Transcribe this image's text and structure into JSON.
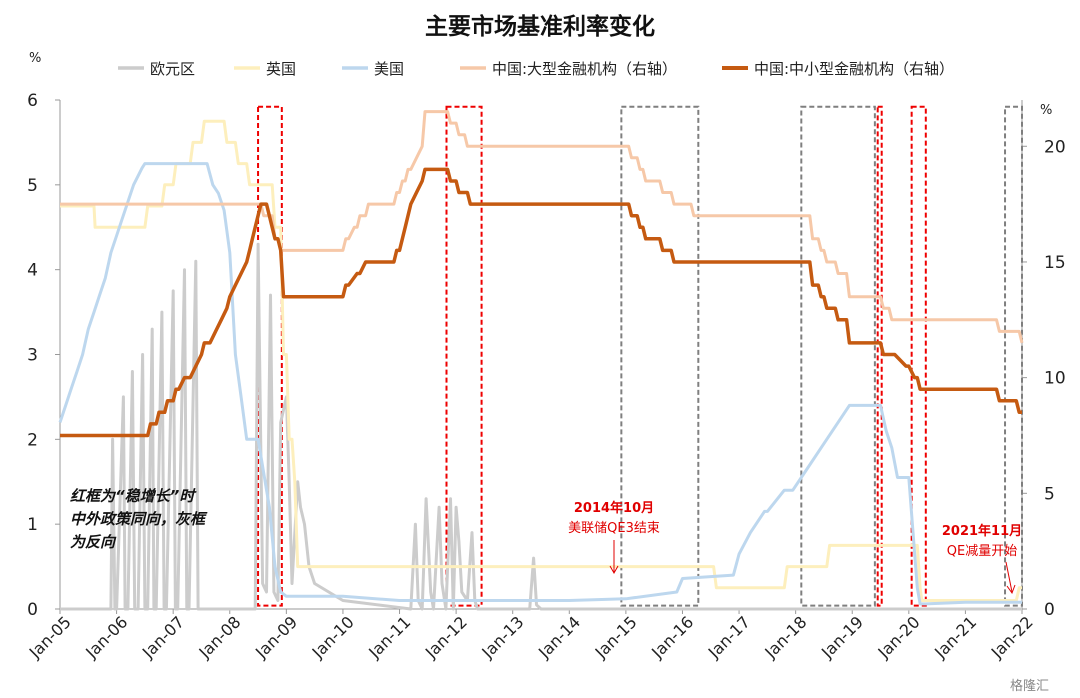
{
  "chart_data": {
    "type": "line",
    "title": "主要市场基准利率变化",
    "left_unit": "%",
    "right_unit": "%",
    "ylim_left": [
      0,
      6
    ],
    "ylim_right": [
      0,
      22
    ],
    "yticks_left": [
      "0",
      "1",
      "2",
      "3",
      "4",
      "5",
      "6"
    ],
    "yticks_right": [
      "0",
      "5",
      "10",
      "15",
      "20"
    ],
    "x_range": [
      2005.0,
      2022.0
    ],
    "x_ticks": [
      "Jan-05",
      "Jan-06",
      "Jan-07",
      "Jan-08",
      "Jan-09",
      "Jan-10",
      "Jan-11",
      "Jan-12",
      "Jan-13",
      "Jan-14",
      "Jan-15",
      "Jan-16",
      "Jan-17",
      "Jan-18",
      "Jan-19",
      "Jan-20",
      "Jan-21",
      "Jan-22"
    ],
    "series": [
      {
        "name": "欧元区",
        "axis": "left",
        "color": "#cccccc",
        "width": 3,
        "x": [
          2005.0,
          2005.9,
          2005.93,
          2005.97,
          2006.0,
          2006.12,
          2006.15,
          2006.2,
          2006.28,
          2006.32,
          2006.38,
          2006.46,
          2006.5,
          2006.55,
          2006.63,
          2006.66,
          2006.7,
          2006.8,
          2006.84,
          2006.88,
          2007.0,
          2007.04,
          2007.08,
          2007.2,
          2007.24,
          2007.28,
          2007.4,
          2007.44,
          2007.48,
          2007.52,
          2008.45,
          2008.5,
          2008.58,
          2008.65,
          2008.72,
          2008.78,
          2008.85,
          2008.9,
          2009.0,
          2009.05,
          2009.1,
          2009.2,
          2009.25,
          2009.32,
          2009.4,
          2009.5,
          2010.0,
          2011.2,
          2011.28,
          2011.33,
          2011.4,
          2011.47,
          2011.55,
          2011.6,
          2011.7,
          2011.75,
          2011.82,
          2011.9,
          2011.95,
          2012.0,
          2012.05,
          2012.1,
          2012.2,
          2012.28,
          2012.33,
          2012.38,
          2012.5,
          2013.3,
          2013.37,
          2013.42,
          2013.5,
          2016.0,
          2022.0
        ],
        "y": [
          0,
          0,
          2.0,
          0,
          0,
          2.5,
          0,
          0,
          2.8,
          0,
          0,
          3.0,
          0,
          0,
          3.3,
          0,
          0,
          3.5,
          0,
          0,
          3.75,
          0,
          0,
          4.0,
          0,
          0,
          4.1,
          0,
          0,
          0,
          0,
          4.3,
          0.3,
          0.2,
          3.7,
          0.2,
          0.1,
          2.2,
          2.5,
          1.5,
          0.3,
          1.5,
          1.2,
          1.0,
          0.5,
          0.3,
          0.1,
          0,
          1.0,
          0.1,
          0,
          1.3,
          0.2,
          0,
          1.2,
          0.3,
          0,
          1.3,
          0,
          1.2,
          0.8,
          0.2,
          0.1,
          0.9,
          0.1,
          0,
          0,
          0,
          0.6,
          0.05,
          0,
          0,
          0
        ]
      },
      {
        "name": "英国",
        "axis": "left",
        "color": "#fdefbd",
        "width": 3,
        "x": [
          2005.0,
          2005.6,
          2005.62,
          2006.5,
          2006.55,
          2006.8,
          2006.85,
          2007.0,
          2007.05,
          2007.3,
          2007.35,
          2007.5,
          2007.55,
          2007.9,
          2007.95,
          2008.1,
          2008.15,
          2008.3,
          2008.35,
          2008.75,
          2008.8,
          2008.9,
          2008.95,
          2009.0,
          2009.05,
          2009.1,
          2009.15,
          2009.2,
          2016.55,
          2016.6,
          2017.8,
          2017.85,
          2018.55,
          2018.6,
          2020.15,
          2020.2,
          2020.23,
          2020.26,
          2021.9,
          2021.95,
          2022.0
        ],
        "y": [
          4.75,
          4.75,
          4.5,
          4.5,
          4.75,
          4.75,
          5.0,
          5.0,
          5.25,
          5.25,
          5.5,
          5.5,
          5.75,
          5.75,
          5.5,
          5.5,
          5.25,
          5.25,
          5.0,
          5.0,
          4.5,
          4.5,
          3.0,
          3.0,
          2.0,
          2.0,
          1.5,
          0.5,
          0.5,
          0.25,
          0.25,
          0.5,
          0.5,
          0.75,
          0.75,
          0.25,
          0.1,
          0.1,
          0.1,
          0.25,
          0.25
        ]
      },
      {
        "name": "美国",
        "axis": "left",
        "color": "#bdd7ee",
        "width": 3,
        "x": [
          2005.0,
          2005.1,
          2005.2,
          2005.3,
          2005.4,
          2005.5,
          2005.6,
          2005.7,
          2005.8,
          2005.9,
          2006.0,
          2006.1,
          2006.2,
          2006.3,
          2006.45,
          2006.5,
          2006.8,
          2007.6,
          2007.7,
          2007.8,
          2007.9,
          2008.0,
          2008.1,
          2008.2,
          2008.3,
          2008.5,
          2008.7,
          2008.8,
          2008.9,
          2009.0,
          2010.0,
          2011.0,
          2012.0,
          2013.0,
          2014.0,
          2015.0,
          2015.9,
          2016.0,
          2016.9,
          2017.0,
          2017.2,
          2017.45,
          2017.5,
          2017.8,
          2017.95,
          2018.2,
          2018.45,
          2018.7,
          2018.95,
          2019.5,
          2019.6,
          2019.7,
          2019.8,
          2020.0,
          2020.15,
          2020.2,
          2020.3,
          2021.0,
          2022.0
        ],
        "y": [
          2.2,
          2.4,
          2.6,
          2.8,
          3.0,
          3.3,
          3.5,
          3.7,
          3.9,
          4.2,
          4.4,
          4.6,
          4.8,
          5.0,
          5.2,
          5.25,
          5.25,
          5.25,
          5.0,
          4.9,
          4.7,
          4.2,
          3.0,
          2.5,
          2.0,
          2.0,
          1.2,
          0.5,
          0.2,
          0.15,
          0.15,
          0.1,
          0.1,
          0.1,
          0.1,
          0.12,
          0.2,
          0.36,
          0.4,
          0.65,
          0.9,
          1.15,
          1.15,
          1.4,
          1.4,
          1.65,
          1.9,
          2.15,
          2.4,
          2.4,
          2.1,
          1.9,
          1.55,
          1.55,
          0.25,
          0.06,
          0.06,
          0.08,
          0.08
        ]
      },
      {
        "name": "中国:大型金融机构（右轴）",
        "axis": "right",
        "color": "#f6c8a8",
        "width": 3,
        "x": [
          2005.0,
          2008.55,
          2008.6,
          2008.75,
          2008.8,
          2008.85,
          2008.9,
          2008.95,
          2009.0,
          2010.0,
          2010.05,
          2010.1,
          2010.2,
          2010.25,
          2010.3,
          2010.4,
          2010.45,
          2010.5,
          2010.9,
          2010.95,
          2011.0,
          2011.05,
          2011.1,
          2011.15,
          2011.2,
          2011.4,
          2011.45,
          2011.85,
          2011.9,
          2012.0,
          2012.05,
          2012.1,
          2012.15,
          2012.2,
          2012.25,
          2012.3,
          2012.35,
          2012.4,
          2012.45,
          2015.05,
          2015.1,
          2015.2,
          2015.25,
          2015.3,
          2015.35,
          2015.6,
          2015.65,
          2015.8,
          2015.85,
          2016.15,
          2016.2,
          2018.25,
          2018.3,
          2018.4,
          2018.45,
          2018.5,
          2018.55,
          2018.7,
          2018.75,
          2018.9,
          2018.95,
          2019.5,
          2019.55,
          2019.65,
          2019.7,
          2019.95,
          2020.0,
          2020.1,
          2020.15,
          2021.55,
          2021.6,
          2021.95,
          2022.0
        ],
        "y": [
          17.5,
          17.5,
          17.0,
          17.0,
          16.0,
          16.0,
          15.5,
          15.5,
          15.5,
          15.5,
          16.0,
          16.0,
          16.5,
          16.5,
          17.0,
          17.0,
          17.5,
          17.5,
          17.5,
          18.0,
          18.0,
          18.5,
          18.5,
          19.0,
          19.0,
          20.0,
          21.5,
          21.5,
          21.0,
          21.0,
          20.5,
          20.5,
          20.5,
          20.0,
          20.0,
          20.0,
          20.0,
          20.0,
          20.0,
          20.0,
          19.5,
          19.5,
          19.0,
          19.0,
          18.5,
          18.5,
          18.0,
          18.0,
          17.5,
          17.5,
          17.0,
          17.0,
          16.0,
          16.0,
          15.5,
          15.5,
          15.0,
          15.0,
          14.5,
          14.5,
          13.5,
          13.5,
          13.0,
          13.0,
          12.5,
          12.5,
          12.5,
          12.5,
          12.5,
          12.5,
          12.0,
          12.0,
          11.5
        ]
      },
      {
        "name": "中国:中小型金融机构（右轴）",
        "axis": "right",
        "color": "#c55a11",
        "width": 3.5,
        "x": [
          2005.0,
          2006.55,
          2006.6,
          2006.7,
          2006.75,
          2006.85,
          2006.9,
          2007.0,
          2007.05,
          2007.1,
          2007.2,
          2007.3,
          2007.4,
          2007.5,
          2007.55,
          2007.65,
          2007.75,
          2007.85,
          2007.95,
          2008.0,
          2008.1,
          2008.2,
          2008.3,
          2008.35,
          2008.4,
          2008.45,
          2008.55,
          2008.65,
          2008.75,
          2008.8,
          2008.85,
          2008.9,
          2008.95,
          2009.0,
          2010.0,
          2010.05,
          2010.1,
          2010.25,
          2010.3,
          2010.4,
          2010.45,
          2010.9,
          2010.95,
          2011.0,
          2011.1,
          2011.2,
          2011.3,
          2011.4,
          2011.45,
          2011.85,
          2011.9,
          2012.0,
          2012.05,
          2012.2,
          2012.25,
          2012.45,
          2012.5,
          2015.05,
          2015.1,
          2015.2,
          2015.25,
          2015.3,
          2015.35,
          2015.6,
          2015.65,
          2015.8,
          2015.85,
          2016.15,
          2016.2,
          2018.25,
          2018.3,
          2018.4,
          2018.45,
          2018.5,
          2018.55,
          2018.7,
          2018.75,
          2018.9,
          2018.95,
          2019.5,
          2019.55,
          2019.7,
          2019.75,
          2019.95,
          2020.0,
          2020.1,
          2020.15,
          2020.2,
          2020.3,
          2021.55,
          2021.6,
          2021.9,
          2021.95,
          2022.0
        ],
        "y": [
          7.5,
          7.5,
          8.0,
          8.0,
          8.5,
          8.5,
          9.0,
          9.0,
          9.5,
          9.5,
          10.0,
          10.0,
          10.5,
          11.0,
          11.5,
          11.5,
          12.0,
          12.5,
          13.0,
          13.5,
          14.0,
          14.5,
          15.0,
          15.5,
          16.0,
          16.5,
          17.5,
          17.5,
          16.5,
          16.0,
          16.0,
          15.5,
          13.5,
          13.5,
          13.5,
          14.0,
          14.0,
          14.5,
          14.5,
          15.0,
          15.0,
          15.0,
          15.5,
          15.5,
          16.5,
          17.5,
          18.0,
          18.5,
          19.0,
          19.0,
          18.5,
          18.5,
          18.0,
          18.0,
          17.5,
          17.5,
          17.5,
          17.5,
          17.0,
          17.0,
          16.5,
          16.5,
          16.0,
          16.0,
          15.5,
          15.5,
          15.0,
          15.0,
          15.0,
          15.0,
          14.0,
          14.0,
          13.5,
          13.5,
          13.0,
          13.0,
          12.5,
          12.5,
          11.5,
          11.5,
          11.0,
          11.0,
          11.0,
          10.5,
          10.5,
          10.0,
          10.0,
          9.5,
          9.5,
          9.5,
          9.0,
          9.0,
          8.5,
          8.5
        ]
      }
    ],
    "boxes": [
      {
        "style": "red",
        "x0": 2008.5,
        "x1": 2008.92,
        "y0": 0.04,
        "y1": 5.92
      },
      {
        "style": "red",
        "x0": 2011.83,
        "x1": 2012.45,
        "y0": 0.04,
        "y1": 5.92
      },
      {
        "style": "gray",
        "x0": 2014.92,
        "x1": 2016.28,
        "y0": 0.04,
        "y1": 5.92
      },
      {
        "style": "gray",
        "x0": 2018.1,
        "x1": 2019.4,
        "y0": 0.04,
        "y1": 5.92
      },
      {
        "style": "red",
        "x0": 2019.45,
        "x1": 220.0,
        "y0": 0.04,
        "y1": 5.92
      },
      {
        "style": "red",
        "x0": 2020.05,
        "x1": 2020.3,
        "y0": 0.04,
        "y1": 5.92
      },
      {
        "style": "gray",
        "x0": 2021.7,
        "x1": 2022.0,
        "y0": 0.04,
        "y1": 5.92
      }
    ],
    "note": [
      "红框为“稳增长”时",
      "中外政策同向，灰框",
      "为反向"
    ],
    "annotations": [
      {
        "title": "2014年10月",
        "text": "美联储QE3结束"
      },
      {
        "title": "2021年11月",
        "text": "QE减量开始"
      }
    ],
    "watermark": "格隆汇"
  }
}
